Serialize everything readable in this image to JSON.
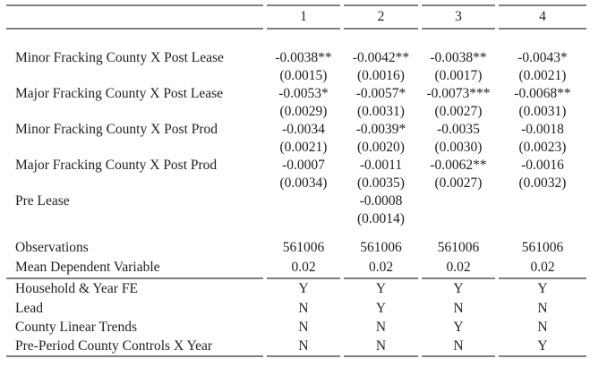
{
  "colors": {
    "rule": "#7f7f7f",
    "text": "#1f1f1f",
    "background": "#ffffff"
  },
  "table": {
    "column_headers": [
      "1",
      "2",
      "3",
      "4"
    ],
    "coefficient_rows": [
      {
        "label": "Minor Fracking County X Post Lease",
        "coefs": [
          "-0.0038**",
          "-0.0042**",
          "-0.0038**",
          "-0.0043*"
        ],
        "ses": [
          "(0.0015)",
          "(0.0016)",
          "(0.0017)",
          "(0.0021)"
        ]
      },
      {
        "label": "Major Fracking County X Post Lease",
        "coefs": [
          "-0.0053*",
          "-0.0057*",
          "-0.0073***",
          "-0.0068**"
        ],
        "ses": [
          "(0.0029)",
          "(0.0031)",
          "(0.0027)",
          "(0.0031)"
        ]
      },
      {
        "label": "Minor Fracking County X Post Prod",
        "coefs": [
          "-0.0034",
          "-0.0039*",
          "-0.0035",
          "-0.0018"
        ],
        "ses": [
          "(0.0021)",
          "(0.0020)",
          "(0.0030)",
          "(0.0023)"
        ]
      },
      {
        "label": "Major Fracking County X Post Prod",
        "coefs": [
          "-0.0007",
          "-0.0011",
          "-0.0062**",
          "-0.0016"
        ],
        "ses": [
          "(0.0034)",
          "(0.0035)",
          "(0.0027)",
          "(0.0032)"
        ]
      },
      {
        "label": "Pre Lease",
        "coefs": [
          "",
          "-0.0008",
          "",
          ""
        ],
        "ses": [
          "",
          "(0.0014)",
          "",
          ""
        ]
      }
    ],
    "stat_rows": [
      {
        "label": "Observations",
        "values": [
          "561006",
          "561006",
          "561006",
          "561006"
        ]
      },
      {
        "label": "Mean Dependent Variable",
        "values": [
          "0.02",
          "0.02",
          "0.02",
          "0.02"
        ]
      }
    ],
    "spec_rows": [
      {
        "label": "Household & Year FE",
        "values": [
          "Y",
          "Y",
          "Y",
          "Y"
        ]
      },
      {
        "label": "Lead",
        "values": [
          "N",
          "Y",
          "N",
          "N"
        ]
      },
      {
        "label": "County Linear Trends",
        "values": [
          "N",
          "N",
          "Y",
          "N"
        ]
      },
      {
        "label": "Pre-Period County Controls X Year",
        "values": [
          "N",
          "N",
          "N",
          "Y"
        ]
      }
    ]
  }
}
